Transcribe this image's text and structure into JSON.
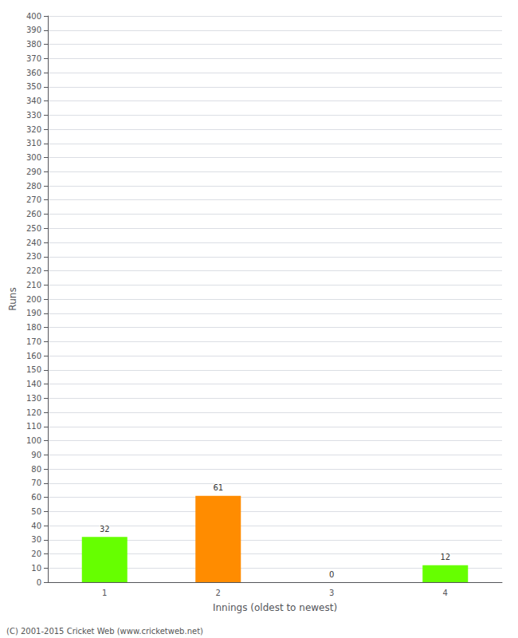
{
  "chart_data": {
    "type": "bar",
    "categories": [
      "1",
      "2",
      "3",
      "4"
    ],
    "values": [
      32,
      61,
      0,
      12
    ],
    "colors": [
      "#66ff00",
      "#ff8c00",
      "#66ff00",
      "#66ff00"
    ],
    "xlabel": "Innings (oldest to newest)",
    "ylabel": "Runs",
    "ylim": [
      0,
      400
    ],
    "yticks": [
      0,
      10,
      20,
      30,
      40,
      50,
      60,
      70,
      80,
      90,
      100,
      110,
      120,
      130,
      140,
      150,
      160,
      170,
      180,
      190,
      200,
      210,
      220,
      230,
      240,
      250,
      260,
      270,
      280,
      290,
      300,
      310,
      320,
      330,
      340,
      350,
      360,
      370,
      380,
      390,
      400
    ],
    "grid": true,
    "data_labels": true,
    "annotations": [
      "(C) 2001-2015 Cricket Web (www.cricketweb.net)"
    ]
  }
}
